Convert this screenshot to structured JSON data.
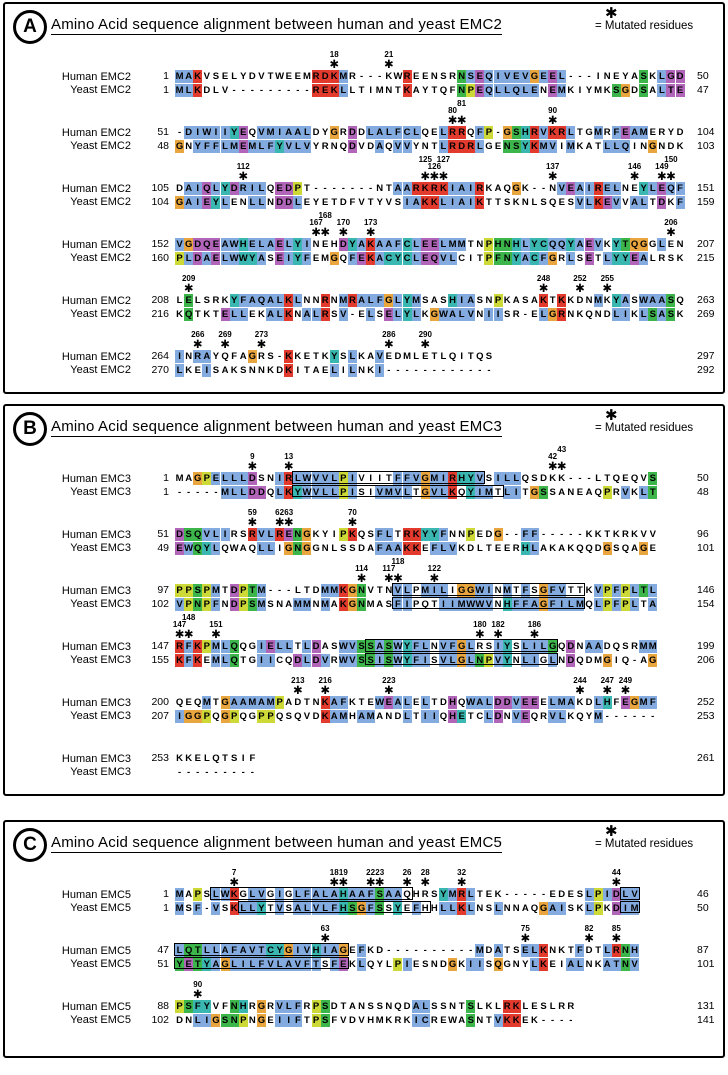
{
  "legend_label": "= Mutated residues",
  "asterisk_glyph": "✱",
  "palette": {
    "b": "#84abdf",
    "r": "#e23a2d",
    "g": "#3cb54b",
    "o": "#e9a53e",
    "p": "#b165b8",
    "y": "#ccd936",
    "c": "#3ab7b0",
    ".": "transparent"
  },
  "panels": [
    {
      "id": "A",
      "title": "Amino Acid sequence alignment between human and yeast EMC2",
      "blocks": [
        {
          "marks": [
            {
              "n": "18",
              "c": 18
            },
            {
              "n": "21",
              "c": 24
            }
          ],
          "rows": [
            {
              "label": "Human EMC2",
              "start": "1",
              "end": "50",
              "seq": "MAKVSELYDVTWEEMRDKMR---KWREENSRNSEQIVEVGEEL---INEYASKLGD",
              "colors": "bbr............rrrb......r.....gbpbbbbbobpb........g.bpp",
              "boxes": []
            },
            {
              "label": "Yeast EMC2",
              "start": "1",
              "end": "47",
              "seq": "MLKDLV---------REKLLTIMNTKAYTQFNPEQLLQLENEMKIYMKSGDSALTE",
              "colors": "bbr............rrrb......r.....gypbbbbbb.pb.....go.g.bpp",
              "boxes": []
            }
          ]
        },
        {
          "marks": [
            {
              "n": "80",
              "c": 31
            },
            {
              "n": "81",
              "c": 32,
              "up": true
            },
            {
              "n": "90",
              "c": 42
            }
          ],
          "rows": [
            {
              "label": "Human EMC2",
              "start": "51",
              "end": "104",
              "seq": "-DIWIIYEQVMIAALDYGRDDLALFCLQELRRQFP-GSHRVKRLTGMRFEAMERYD",
              "colors": ".bbbbbcp.bbbbbb..o.p.bbbbbb..brr.by.ogcrbrrb..b.bpbb....",
              "boxes": []
            },
            {
              "label": "Yeast EMC2",
              "start": "48",
              "end": "103",
              "seq": "GNYFFLMEMLFYVLVYRNQDVDAQVVYNTLRDRLGENSYKMVIMKATLLQINGNDK",
              "colors": "o.bbbbbpbbbcbbb....p..b.bb...brrrb..ggcrbb.b...bbb..o...",
              "boxes": []
            }
          ]
        },
        {
          "marks": [
            {
              "n": "112",
              "c": 8
            },
            {
              "n": "125",
              "c": 28,
              "up": true
            },
            {
              "n": "126",
              "c": 29
            },
            {
              "n": "127",
              "c": 30,
              "up": true
            },
            {
              "n": "137",
              "c": 42
            },
            {
              "n": "146",
              "c": 51
            },
            {
              "n": "149",
              "c": 54
            },
            {
              "n": "150",
              "c": 55,
              "up": true
            }
          ],
          "rows": [
            {
              "label": "Human EMC2",
              "start": "105",
              "end": "151",
              "seq": "DAIQLYDRILQEDPT-------NTAARKRKIAIRKAQGK--NVEAIRELNEYLEQF",
              "colors": ".bbpbcpbbb.ppy..........bbrrrrbbbr...o....bpbbrbb..cbpbb",
              "boxes": []
            },
            {
              "label": "Yeast EMC2",
              "start": "104",
              "end": "159",
              "seq": "GAIEYLENLLNDDLEYETDFVTYVSIAKKLIAIKTTSKNLSQESVLKEVVALTDKF",
              "colors": "obbpcb..bb.ppb...........bbrrbbbbr..........bbrpb.bb.p.b",
              "boxes": []
            }
          ]
        },
        {
          "marks": [
            {
              "n": "167",
              "c": 16
            },
            {
              "n": "168",
              "c": 17,
              "up": true
            },
            {
              "n": "170",
              "c": 19
            },
            {
              "n": "173",
              "c": 22
            },
            {
              "n": "206",
              "c": 55
            }
          ],
          "rows": [
            {
              "label": "Human EMC2",
              "start": "152",
              "end": "207",
              "seq": "VGDQEAWHELAELYINEHDYAKAAFCLEELMMTNPHNHLYCQQYAEVKYTQGGLEN",
              "colors": "bopppbbcbbbpbcb...pcbrbbbcbppbbb..yggcbccbbcbpb.cgoo.b..",
              "boxes": []
            },
            {
              "label": "Yeast EMC2",
              "start": "160",
              "end": "215",
              "seq": "PLDAELWWYASEIYFEMGQFEKACYCLEQVLCITPFNYACFGRLSETLYYEALRSK",
              "colors": "ybpbpbbccb.pbcb..o.bprbcccbppbb...yggcbcbo.b.p.bccpb....",
              "boxes": []
            }
          ]
        },
        {
          "marks": [
            {
              "n": "209",
              "c": 2
            },
            {
              "n": "248",
              "c": 41
            },
            {
              "n": "252",
              "c": 45
            },
            {
              "n": "255",
              "c": 48
            }
          ],
          "rows": [
            {
              "label": "Human EMC2",
              "start": "208",
              "end": "263",
              "seq": "LELSRKYFAQALKLNNRNMRALFGLYMSASHIASNPKASAKTKKDNMKYASWAASQ",
              "colors": ".g....cbbbbbrb..r.brbbbobcb...cbb..y....r.r...b.cb.bbbg.",
              "boxes": []
            },
            {
              "label": "Yeast EMC2",
              "start": "216",
              "end": "269",
              "seq": "KQTKTELLEKALKNALRSV-ELSELYLKGWALVNIISR-ELGRNKQNDLIKLSASK",
              "colors": ".g...pbb..bbr.bbr.b..b.pbcb.obbbb.bb....bor.....bb.bgbg.",
              "boxes": []
            }
          ]
        },
        {
          "marks": [
            {
              "n": "266",
              "c": 3
            },
            {
              "n": "269",
              "c": 6
            },
            {
              "n": "273",
              "c": 10
            },
            {
              "n": "286",
              "c": 24
            },
            {
              "n": "290",
              "c": 28
            }
          ],
          "rows": [
            {
              "label": "Human EMC2",
              "start": "264",
              "end": "297",
              "seq": "INRAYQFAGRS-KKETKYSLKAVEDMLETLQITQS",
              "colors": "b.bb....o...r....c.b..b............",
              "boxes": []
            },
            {
              "label": "Yeast EMC2",
              "start": "270",
              "end": "292",
              "seq": "LKEISAKSNNKDKITAELILNKI------------",
              "colors": "b..b........r....b.b..b............",
              "boxes": []
            }
          ]
        }
      ]
    },
    {
      "id": "B",
      "title": "Amino Acid sequence alignment between human and yeast EMC3",
      "blocks": [
        {
          "marks": [
            {
              "n": "9",
              "c": 9
            },
            {
              "n": "13",
              "c": 13
            },
            {
              "n": "42",
              "c": 42
            },
            {
              "n": "43",
              "c": 43,
              "up": true
            }
          ],
          "rows": [
            {
              "label": "Human EMC3",
              "start": "1",
              "end": "50",
              "seq": "MAGPELLLDSNIRLWVVLPIVIITFFVGMIRHYVSILLQSDKK---LTQEQVS",
              "colors": "..oybbbbp..brbbbbbyb....bbbobbrccb.bbb..............g",
              "boxes": [
                [
                  14,
                  34
                ]
              ]
            },
            {
              "label": "Yeast EMC3",
              "start": "1",
              "end": "48",
              "seq": "-----MLLDDQLKYWVLLPISIVMVLTGVLKQYIMTLITGSSANEAQPRVKLT",
              "colors": ".....bbbpp.brcbbbbyb..bbbb.obbr.cbb.bb.og......y.b.bg",
              "boxes": [
                [
                  14,
                  36
                ]
              ]
            }
          ]
        },
        {
          "marks": [
            {
              "n": "59",
              "c": 9
            },
            {
              "n": "62",
              "c": 12
            },
            {
              "n": "63",
              "c": 13
            },
            {
              "n": "70",
              "c": 20
            }
          ],
          "rows": [
            {
              "label": "Human EMC3",
              "start": "51",
              "end": "96",
              "seq": "DSQVLIRSRVLRENGKYIPKQSFLTRKYYFNNPEDG--FF-----KKTKRKVV",
              "colors": "pggbbb..rbbrpgo...yr..bb.rrccb..y..o..bb.............",
              "boxes": []
            },
            {
              "label": "Yeast EMC3",
              "start": "49",
              "end": "101",
              "seq": "EWQYLQWAQLLIGNGGNLSSDAFAAKKEFLVKDLTEERHLAKAKQQDGSQAGE",
              "colors": "pbgcb....bb.ogo.......bbbrr.bbb.......cb.......o...o.",
              "boxes": []
            }
          ]
        },
        {
          "marks": [
            {
              "n": "114",
              "c": 21
            },
            {
              "n": "117",
              "c": 24
            },
            {
              "n": "118",
              "c": 25,
              "up": true
            },
            {
              "n": "122",
              "c": 29
            }
          ],
          "rows": [
            {
              "label": "Human EMC3",
              "start": "97",
              "end": "146",
              "seq": "PPSPMTDPTM---LTDMMKGNVTNVLPMILIGGWINMTFSGFVTTKVPFPLTL",
              "colors": "yygyb.pygb......bbrog...bb.bbb.oobb.b.b.obb...bybybgb",
              "boxes": [
                [
                  25,
                  45
                ]
              ]
            },
            {
              "label": "Yeast EMC3",
              "start": "102",
              "end": "154",
              "seq": "VPNPFNDPSMSNAMMNMAKGNMASFIPQTIIMWWVNHFFAGFILMQLPFPLTA",
              "colors": "bygyb.pygb...bb.b.rog...bb...bbbbbb.cbbbobbbb.bybyb.b",
              "boxes": [
                [
                  25,
                  45
                ]
              ]
            }
          ]
        },
        {
          "marks": [
            {
              "n": "147",
              "c": 1
            },
            {
              "n": "148",
              "c": 2,
              "up": true
            },
            {
              "n": "151",
              "c": 5
            },
            {
              "n": "180",
              "c": 34
            },
            {
              "n": "182",
              "c": 36
            },
            {
              "n": "186",
              "c": 40
            }
          ],
          "rows": [
            {
              "label": "Human EMC3",
              "start": "147",
              "end": "199",
              "seq": "RFKPMLQQGIELLTLDASWVSSASWYFLNVFGLRSIYSLILGQDNAADQSRMM",
              "colors": "rbrybbg..bpbb.bp..bbggbgbcbb.bbob..bc.bbbg.p.bb....bb",
              "boxes": [
                [
                  22,
                  42
                ]
              ]
            },
            {
              "label": "Yeast EMC3",
              "start": "155",
              "end": "206",
              "seq": "KFKEMLQTGIICQDLDVRWVSSISWYFISVLGLNPVYNLIGLNDQDMGIQ-AG",
              "colors": "rbr.bbg..bb..pbpb.bbggbgbcbb.bbobgybc.bb.b.p...o....o",
              "boxes": [
                [
                  22,
                  42
                ]
              ]
            }
          ]
        },
        {
          "marks": [
            {
              "n": "213",
              "c": 14
            },
            {
              "n": "216",
              "c": 17
            },
            {
              "n": "223",
              "c": 24
            },
            {
              "n": "244",
              "c": 45
            },
            {
              "n": "247",
              "c": 48
            },
            {
              "n": "249",
              "c": 50
            }
          ],
          "rows": [
            {
              "label": "Human EMC3",
              "start": "200",
              "end": "252",
              "seq": "QEQMTGAAMAMPADTNKAFKTEWEALELTDHQWALDDVEEELMAKDLHFEGMF",
              "colors": "...b.obbbbby....rbb...bpbb.b..p.bbbppbpp.bbb..bc.pobb",
              "boxes": []
            },
            {
              "label": "Yeast EMC3",
              "start": "207",
              "end": "253",
              "seq": "IGGPQGPQGPPQSQVDKAMHAMANDLTIIQHETCLDNVEQRVLKQYM------",
              "colors": "booy.oy..yy.....rbb.bb...b.bb.pc..bp.bp..bb...b......",
              "boxes": []
            }
          ]
        },
        {
          "marks": [],
          "rows": [
            {
              "label": "Human EMC3",
              "start": "253",
              "end": "261",
              "seq": "KKELQTSIF",
              "colors": ".........",
              "boxes": []
            },
            {
              "label": "Yeast EMC3",
              "start": "",
              "end": "",
              "seq": "---------",
              "colors": ".........",
              "boxes": []
            }
          ]
        }
      ]
    },
    {
      "id": "C",
      "title": "Amino Acid sequence alignment between human and yeast EMC5",
      "blocks": [
        {
          "marks": [
            {
              "n": "7",
              "c": 7
            },
            {
              "n": "18",
              "c": 18
            },
            {
              "n": "19",
              "c": 19
            },
            {
              "n": "22",
              "c": 22
            },
            {
              "n": "23",
              "c": 23
            },
            {
              "n": "26",
              "c": 26
            },
            {
              "n": "28",
              "c": 28
            },
            {
              "n": "32",
              "c": 32
            },
            {
              "n": "44",
              "c": 49
            }
          ],
          "rows": [
            {
              "label": "Human EMC5",
              "start": "1",
              "end": "46",
              "seq": "MAPSLWKGLVGIGLFALAHAAFSAAQHRSYMRLTEK-----EDESLPIDLV",
              "colors": "b.y.bbr.bb.b.bbbbbcbbbgbb....cbrb............bybpbb",
              "boxes": [
                [
                  5,
                  26
                ],
                [
                  50,
                  51
                ]
              ]
            },
            {
              "label": "Yeast EMC5",
              "start": "1",
              "end": "50",
              "seq": "MSF-VSKLLYTVSALVLFHSGFSSYEFHHLLKLNSLNNAQGAISKLPKDIM",
              "colors": "b.b.b.rbbc.b.bbbbbcgobg.c.b..bbrb..b....obb..by.pbb",
              "boxes": [
                [
                  8,
                  28
                ],
                [
                  50,
                  51
                ]
              ]
            }
          ]
        },
        {
          "marks": [
            {
              "n": "63",
              "c": 17
            },
            {
              "n": "75",
              "c": 39
            },
            {
              "n": "82",
              "c": 46
            },
            {
              "n": "85",
              "c": 49
            }
          ],
          "rows": [
            {
              "label": "Human EMC5",
              "start": "47",
              "end": "87",
              "seq": "LQTLLAFAVTCYGIVHIAGEFKD----------MDATSELKNKTFDTLRNH",
              "colors": "bggbbbbbbbccobbcbbo.b............b.b..bbr...b..brgb",
              "boxes": [
                [
                  1,
                  19
                ]
              ]
            },
            {
              "label": "Yeast EMC5",
              "start": "51",
              "end": "101",
              "seq": "YETYAGLILFVLAVFTSFEKLQYLPIESNDGKIISQGNYLKEIALNKATNV",
              "colors": "gpgcbobbbbbbbbbb.bp.b...yb....o.bb.o...br..bb..bbgb",
              "boxes": [
                [
                  1,
                  19
                ]
              ]
            }
          ]
        },
        {
          "marks": [
            {
              "n": "90",
              "c": 3
            }
          ],
          "rows": [
            {
              "label": "Human EMC5",
              "start": "88",
              "end": "131",
              "seq": "PSFYVFNHRGRVLFRPSDTANSSNQDALSSNTSLKLRKLESLRR",
              "colors": "ygcc..gc.o.bbb.yg.........bb....g...rr......",
              "boxes": []
            },
            {
              "label": "Yeast EMC5",
              "start": "102",
              "end": "141",
              "seq": "DNLIGSNPNGEIIFTPSFVDVHMKRKICREWASNTVKKEK----",
              "colors": "..bboggy.o.bbb.yg.........bb....g..brr......",
              "boxes": []
            }
          ]
        }
      ]
    }
  ]
}
